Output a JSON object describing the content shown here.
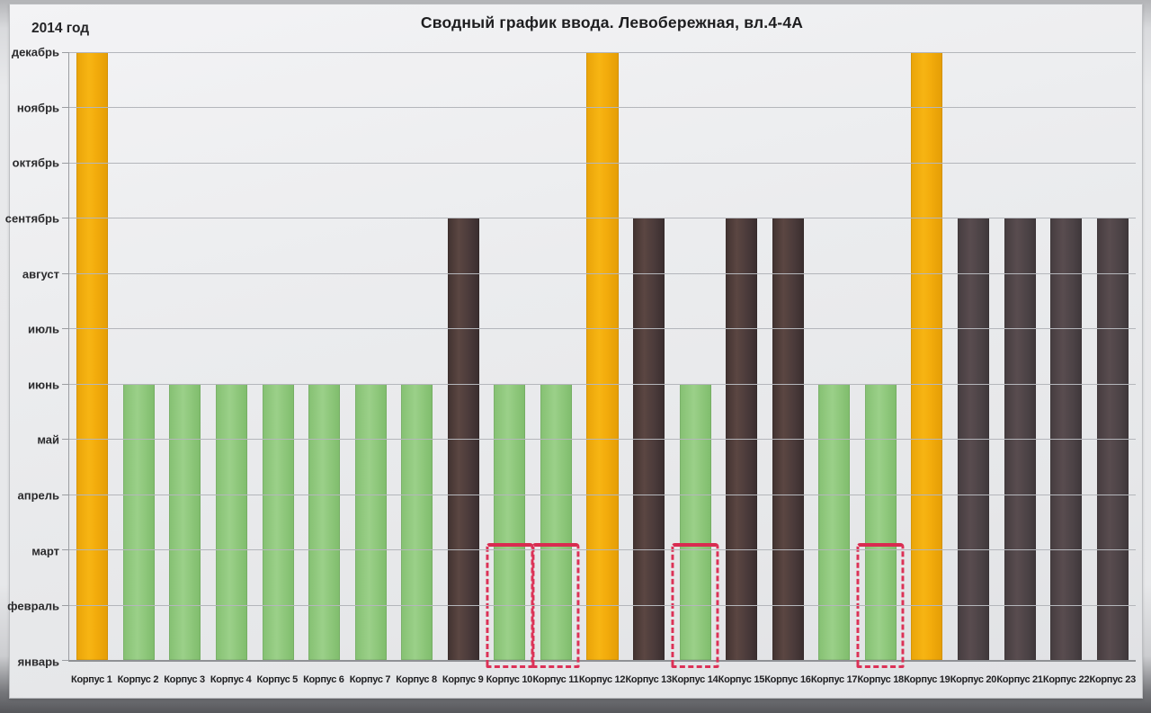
{
  "chart": {
    "title": "Сводный график ввода. Левобережная, вл.4-4А",
    "year_label": "2014 год"
  },
  "chart_data": {
    "type": "bar",
    "title": "Сводный график ввода. Левобережная, вл.4-4А",
    "subtitle": "2014 год",
    "xlabel": "",
    "ylabel": "",
    "grid": true,
    "legend": false,
    "y_axis": {
      "ticks_bottom_to_top": [
        "январь",
        "февраль",
        "март",
        "апрель",
        "май",
        "июнь",
        "июль",
        "август",
        "сентябрь",
        "октябрь",
        "ноябрь",
        "декабрь"
      ],
      "unit": "месяц",
      "range_units": [
        0,
        11
      ]
    },
    "categories": [
      "Корпус 1",
      "Корпус 2",
      "Корпус 3",
      "Корпус 4",
      "Корпус 5",
      "Корпус 6",
      "Корпус 7",
      "Корпус 8",
      "Корпус 9",
      "Корпус 10",
      "Корпус 11",
      "Корпус 12",
      "Корпус 13",
      "Корпус 14",
      "Корпус 15",
      "Корпус 16",
      "Корпус 17",
      "Корпус 18",
      "Корпус 19",
      "Корпус 20",
      "Корпус 21",
      "Корпус 22",
      "Корпус 23"
    ],
    "bars": [
      {
        "label": "Корпус 1",
        "top_month": "декабрь",
        "units": 11,
        "color": "orange",
        "red_box": false
      },
      {
        "label": "Корпус 2",
        "top_month": "июнь",
        "units": 5,
        "color": "green",
        "red_box": false
      },
      {
        "label": "Корпус 3",
        "top_month": "июнь",
        "units": 5,
        "color": "green",
        "red_box": false
      },
      {
        "label": "Корпус 4",
        "top_month": "июнь",
        "units": 5,
        "color": "green",
        "red_box": false
      },
      {
        "label": "Корпус 5",
        "top_month": "июнь",
        "units": 5,
        "color": "green",
        "red_box": false
      },
      {
        "label": "Корпус 6",
        "top_month": "июнь",
        "units": 5,
        "color": "green",
        "red_box": false
      },
      {
        "label": "Корпус 7",
        "top_month": "июнь",
        "units": 5,
        "color": "green",
        "red_box": false
      },
      {
        "label": "Корпус 8",
        "top_month": "июнь",
        "units": 5,
        "color": "green",
        "red_box": false
      },
      {
        "label": "Корпус 9",
        "top_month": "сентябрь",
        "units": 8,
        "color": "dark_maroon",
        "red_box": false
      },
      {
        "label": "Корпус 10",
        "top_month": "июнь",
        "units": 5,
        "color": "green",
        "red_box": true
      },
      {
        "label": "Корпус 11",
        "top_month": "июнь",
        "units": 5,
        "color": "green",
        "red_box": true
      },
      {
        "label": "Корпус 12",
        "top_month": "декабрь",
        "units": 11,
        "color": "orange",
        "red_box": false
      },
      {
        "label": "Корпус 13",
        "top_month": "сентябрь",
        "units": 8,
        "color": "dark_maroon",
        "red_box": false
      },
      {
        "label": "Корпус 14",
        "top_month": "июнь",
        "units": 5,
        "color": "green",
        "red_box": true
      },
      {
        "label": "Корпус 15",
        "top_month": "сентябрь",
        "units": 8,
        "color": "dark_maroon",
        "red_box": false
      },
      {
        "label": "Корпус 16",
        "top_month": "сентябрь",
        "units": 8,
        "color": "dark_maroon",
        "red_box": false
      },
      {
        "label": "Корпус 17",
        "top_month": "июнь",
        "units": 5,
        "color": "green",
        "red_box": false
      },
      {
        "label": "Корпус 18",
        "top_month": "июнь",
        "units": 5,
        "color": "green",
        "red_box": true
      },
      {
        "label": "Корпус 19",
        "top_month": "декабрь",
        "units": 11,
        "color": "orange",
        "red_box": false
      },
      {
        "label": "Корпус 20",
        "top_month": "сентябрь",
        "units": 8,
        "color": "dark_gray",
        "red_box": false
      },
      {
        "label": "Корпус 21",
        "top_month": "сентябрь",
        "units": 8,
        "color": "dark_gray",
        "red_box": false
      },
      {
        "label": "Корпус 22",
        "top_month": "сентябрь",
        "units": 8,
        "color": "dark_gray",
        "red_box": false
      },
      {
        "label": "Корпус 23",
        "top_month": "сентябрь",
        "units": 8,
        "color": "dark_gray",
        "red_box": false
      }
    ],
    "annotation": {
      "description": "hand-drawn red dashed boxes with solid top edge",
      "bars": [
        "Корпус 10",
        "Корпус 11",
        "Корпус 14",
        "Корпус 18"
      ],
      "from_month": "январь",
      "to_month": "март",
      "units_span": [
        0,
        2
      ],
      "color": "#dc3156"
    },
    "colors": {
      "orange": "#f2a90d",
      "green": "#90c87e",
      "dark_maroon": "#4b3a3c",
      "dark_gray": "#4e4447",
      "annotation_red": "#dc3156",
      "sheet_background": "#e9eaec",
      "gridline": "#b4b6bb",
      "text": "#222222"
    }
  }
}
